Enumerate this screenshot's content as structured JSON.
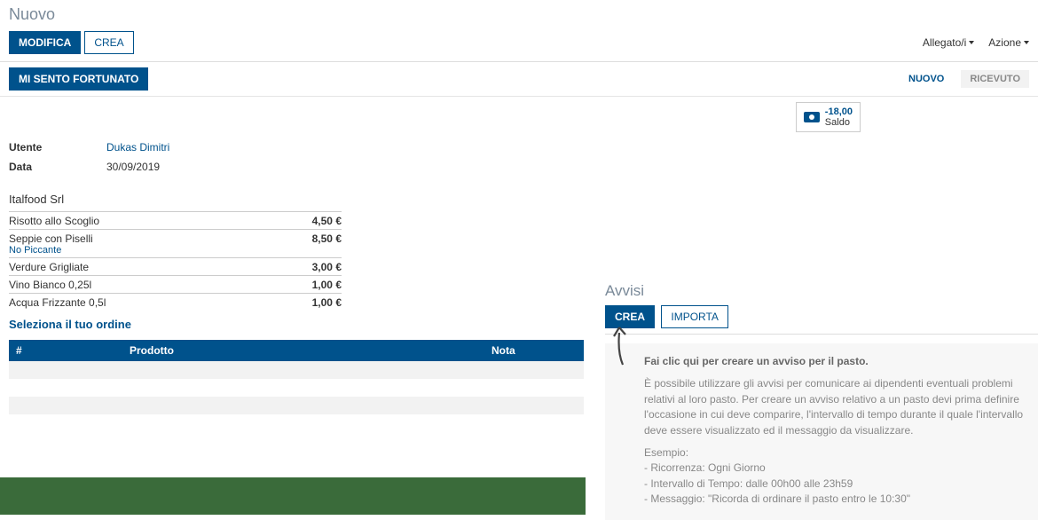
{
  "page_title": "Nuovo",
  "toolbar": {
    "modifica": "MODIFICA",
    "crea": "CREA",
    "allegato": "Allegato/i",
    "azione": "Azione"
  },
  "subbar": {
    "lucky": "MI SENTO FORTUNATO"
  },
  "status": {
    "nuovo": "NUOVO",
    "ricevuto": "RICEVUTO"
  },
  "balance": {
    "amount": "-18,00",
    "label": "Saldo"
  },
  "info": {
    "utente_label": "Utente",
    "utente_value": "Dukas Dimitri",
    "data_label": "Data",
    "data_value": "30/09/2019"
  },
  "supplier": {
    "name": "Italfood Srl",
    "items": [
      {
        "name": "Risotto allo Scoglio",
        "note": "",
        "price": "4,50 €"
      },
      {
        "name": "Seppie con Piselli",
        "note": "No Piccante",
        "price": "8,50 €"
      },
      {
        "name": "Verdure Grigliate",
        "note": "",
        "price": "3,00 €"
      },
      {
        "name": "Vino Bianco 0,25l",
        "note": "",
        "price": "1,00 €"
      },
      {
        "name": "Acqua Frizzante 0,5l",
        "note": "",
        "price": "1,00 €"
      }
    ]
  },
  "order_link": "Seleziona il tuo ordine",
  "order_table": {
    "col_num": "#",
    "col_prodotto": "Prodotto",
    "col_nota": "Nota"
  },
  "avvisi": {
    "title": "Avvisi",
    "crea": "CREA",
    "importa": "IMPORTA",
    "help_title": "Fai clic qui per creare un avviso per il pasto.",
    "help_body": "È possibile utilizzare gli avvisi per comunicare ai dipendenti eventuali problemi relativi al loro pasto. Per creare un avviso relativo a un pasto devi prima definire l'occasione in cui deve comparire, l'intervallo di tempo durante il quale l'intervallo deve essere visualizzato ed il messaggio da visualizzare.",
    "esempio_label": "Esempio:",
    "esempio1": "- Ricorrenza: Ogni Giorno",
    "esempio2": "- Intervallo di Tempo: dalle 00h00 alle 23h59",
    "esempio3": "- Messaggio: \"Ricorda di ordinare il pasto entro le 10:30\""
  }
}
